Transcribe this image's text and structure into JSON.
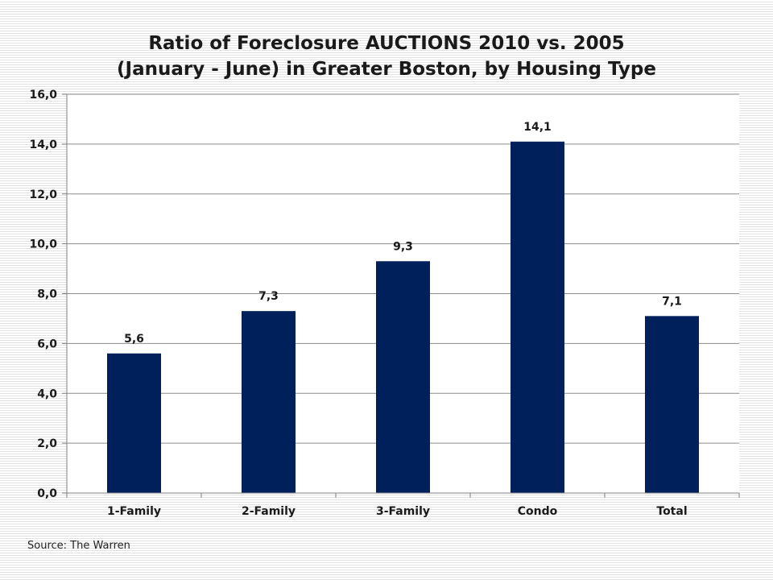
{
  "chart_data": {
    "type": "bar",
    "title_line1": "Ratio of Foreclosure AUCTIONS 2010 vs. 2005",
    "title_line2": "(January - June) in Greater Boston, by Housing Type",
    "categories": [
      "1-Family",
      "2-Family",
      "3-Family",
      "Condo",
      "Total"
    ],
    "values": [
      5.6,
      7.3,
      9.3,
      14.1,
      7.1
    ],
    "value_labels": [
      "5,6",
      "7,3",
      "9,3",
      "14,1",
      "7,1"
    ],
    "y_ticks": [
      0,
      2,
      4,
      6,
      8,
      10,
      12,
      14,
      16
    ],
    "y_tick_labels": [
      "0,0",
      "2,0",
      "4,0",
      "6,0",
      "8,0",
      "10,0",
      "12,0",
      "14,0",
      "16,0"
    ],
    "ylim": [
      0,
      16
    ],
    "xlabel": "",
    "ylabel": "",
    "grid": true,
    "legend": "none",
    "bar_color": "#00205b"
  },
  "source": "Source: The Warren"
}
